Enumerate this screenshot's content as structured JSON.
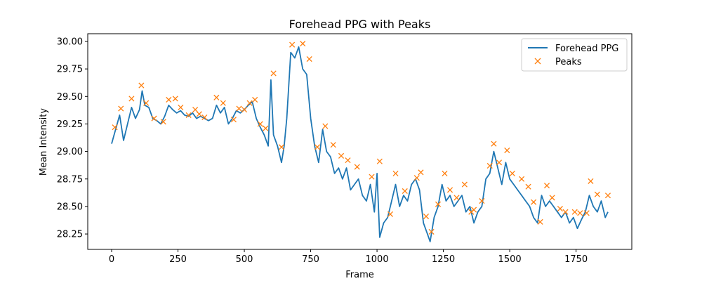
{
  "chart_data": {
    "type": "line",
    "title": "Forehead PPG with Peaks",
    "xlabel": "Frame",
    "ylabel": "Mean Intensity",
    "xlim": [
      -90,
      1960
    ],
    "ylim": [
      28.11,
      30.07
    ],
    "xticks": [
      0,
      250,
      500,
      750,
      1000,
      1250,
      1500,
      1750
    ],
    "xtick_labels": [
      "0",
      "250",
      "500",
      "750",
      "1000",
      "1250",
      "1500",
      "1750"
    ],
    "yticks": [
      28.25,
      28.5,
      28.75,
      29.0,
      29.25,
      29.5,
      29.75,
      30.0
    ],
    "ytick_labels": [
      "28.25",
      "28.50",
      "28.75",
      "29.00",
      "29.25",
      "29.50",
      "29.75",
      "30.00"
    ],
    "grid": false,
    "legend_position": "top-right",
    "series": [
      {
        "name": "Forehead PPG",
        "color": "#1f77b4",
        "x": [
          0,
          15,
          30,
          45,
          60,
          75,
          90,
          105,
          115,
          125,
          140,
          155,
          170,
          185,
          200,
          215,
          230,
          245,
          260,
          275,
          290,
          305,
          320,
          335,
          350,
          365,
          380,
          395,
          410,
          425,
          440,
          455,
          470,
          485,
          500,
          515,
          530,
          545,
          560,
          575,
          590,
          600,
          610,
          625,
          640,
          650,
          660,
          675,
          690,
          705,
          720,
          735,
          750,
          765,
          780,
          795,
          810,
          825,
          840,
          855,
          870,
          885,
          900,
          915,
          930,
          945,
          960,
          975,
          990,
          1000,
          1010,
          1025,
          1040,
          1055,
          1070,
          1085,
          1100,
          1115,
          1130,
          1145,
          1160,
          1175,
          1190,
          1200,
          1215,
          1230,
          1245,
          1260,
          1275,
          1290,
          1305,
          1320,
          1335,
          1350,
          1365,
          1380,
          1395,
          1410,
          1425,
          1440,
          1455,
          1470,
          1485,
          1500,
          1515,
          1530,
          1545,
          1560,
          1575,
          1590,
          1605,
          1620,
          1635,
          1650,
          1665,
          1680,
          1695,
          1710,
          1725,
          1740,
          1755,
          1770,
          1785,
          1800,
          1815,
          1830,
          1845,
          1860,
          1870
        ],
        "y": [
          29.07,
          29.2,
          29.33,
          29.1,
          29.25,
          29.4,
          29.3,
          29.38,
          29.55,
          29.42,
          29.4,
          29.3,
          29.28,
          29.25,
          29.32,
          29.42,
          29.38,
          29.35,
          29.37,
          29.33,
          29.32,
          29.35,
          29.3,
          29.32,
          29.3,
          29.28,
          29.3,
          29.42,
          29.35,
          29.4,
          29.25,
          29.3,
          29.37,
          29.35,
          29.38,
          29.42,
          29.45,
          29.3,
          29.22,
          29.15,
          29.05,
          29.65,
          29.15,
          29.05,
          28.9,
          29.05,
          29.3,
          29.9,
          29.85,
          29.95,
          29.75,
          29.7,
          29.3,
          29.05,
          28.9,
          29.2,
          29.0,
          28.95,
          28.8,
          28.85,
          28.75,
          28.85,
          28.65,
          28.7,
          28.75,
          28.6,
          28.55,
          28.7,
          28.45,
          28.8,
          28.22,
          28.35,
          28.4,
          28.55,
          28.7,
          28.5,
          28.6,
          28.55,
          28.7,
          28.75,
          28.65,
          28.35,
          28.25,
          28.18,
          28.4,
          28.5,
          28.7,
          28.55,
          28.6,
          28.5,
          28.55,
          28.6,
          28.45,
          28.5,
          28.35,
          28.45,
          28.5,
          28.75,
          28.8,
          29.0,
          28.85,
          28.7,
          28.9,
          28.75,
          28.7,
          28.65,
          28.6,
          28.55,
          28.5,
          28.4,
          28.35,
          28.6,
          28.5,
          28.55,
          28.5,
          28.45,
          28.4,
          28.45,
          28.35,
          28.4,
          28.3,
          28.38,
          28.45,
          28.6,
          28.5,
          28.45,
          28.55,
          28.4,
          28.45
        ]
      },
      {
        "name": "Peaks",
        "color": "#ff7f0e",
        "marker": "x",
        "x": [
          12,
          35,
          75,
          112,
          130,
          160,
          195,
          215,
          240,
          260,
          290,
          315,
          330,
          350,
          395,
          420,
          460,
          480,
          500,
          520,
          540,
          560,
          580,
          610,
          640,
          680,
          720,
          745,
          775,
          805,
          835,
          865,
          890,
          925,
          980,
          1010,
          1050,
          1070,
          1105,
          1150,
          1165,
          1185,
          1205,
          1230,
          1255,
          1275,
          1300,
          1330,
          1355,
          1365,
          1395,
          1425,
          1440,
          1460,
          1490,
          1510,
          1545,
          1570,
          1590,
          1615,
          1640,
          1660,
          1690,
          1710,
          1745,
          1765,
          1790,
          1805,
          1830,
          1870
        ],
        "y": [
          29.22,
          29.39,
          29.48,
          29.6,
          29.44,
          29.3,
          29.27,
          29.47,
          29.48,
          29.4,
          29.33,
          29.38,
          29.34,
          29.31,
          29.49,
          29.44,
          29.29,
          29.39,
          29.38,
          29.44,
          29.47,
          29.25,
          29.21,
          29.71,
          29.04,
          29.97,
          29.98,
          29.84,
          29.04,
          29.23,
          29.06,
          28.96,
          28.92,
          28.86,
          28.77,
          28.91,
          28.43,
          28.8,
          28.64,
          28.76,
          28.81,
          28.41,
          28.27,
          28.52,
          28.8,
          28.65,
          28.58,
          28.7,
          28.45,
          28.47,
          28.55,
          28.87,
          29.07,
          28.9,
          29.01,
          28.8,
          28.75,
          28.68,
          28.54,
          28.36,
          28.69,
          28.58,
          28.48,
          28.45,
          28.45,
          28.44,
          28.44,
          28.73,
          28.61,
          28.6
        ]
      }
    ]
  }
}
